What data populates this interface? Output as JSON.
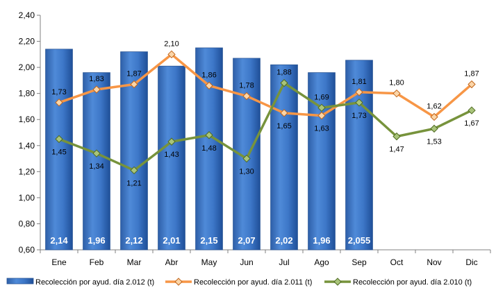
{
  "chart_data": {
    "type": "bar+line",
    "categories": [
      "Ene",
      "Feb",
      "Mar",
      "Abr",
      "May",
      "Jun",
      "Jul",
      "Ago",
      "Sep",
      "Oct",
      "Nov",
      "Dic"
    ],
    "ylim": [
      0.6,
      2.4
    ],
    "yticks": [
      "0,60",
      "0,80",
      "1,00",
      "1,20",
      "1,40",
      "1,60",
      "1,80",
      "2,00",
      "2,20",
      "2,40"
    ],
    "grid": false,
    "legend_position": "bottom",
    "series": [
      {
        "name": "Recolección por ayud. día 2.012 (t)",
        "kind": "bar",
        "color": "#3f78c8",
        "values": [
          2.14,
          1.96,
          2.12,
          2.01,
          2.15,
          2.07,
          2.02,
          1.96,
          2.055,
          null,
          null,
          null
        ],
        "labels": [
          "2,14",
          "1,96",
          "2,12",
          "2,01",
          "2,15",
          "2,07",
          "2,02",
          "1,96",
          "2,055",
          "",
          "",
          ""
        ]
      },
      {
        "name": "Recolección por ayud. día 2.011 (t)",
        "kind": "line",
        "color": "#f79646",
        "values": [
          1.73,
          1.83,
          1.87,
          2.1,
          1.86,
          1.78,
          1.65,
          1.63,
          1.81,
          1.8,
          1.62,
          1.87
        ],
        "labels": [
          "1,73",
          "1,83",
          "1,87",
          "2,10",
          "1,86",
          "1,78",
          "1,65",
          "1,63",
          "1,81",
          "1,80",
          "1,62",
          "1,87"
        ]
      },
      {
        "name": "Recolección por ayud. día 2.010 (t)",
        "kind": "line",
        "color": "#77933c",
        "values": [
          1.45,
          1.34,
          1.21,
          1.43,
          1.48,
          1.3,
          1.88,
          1.69,
          1.73,
          1.47,
          1.53,
          1.67
        ],
        "labels": [
          "1,45",
          "1,34",
          "1,21",
          "1,43",
          "1,48",
          "1,30",
          "1,88",
          "1,69",
          "1,73",
          "1,47",
          "1,53",
          "1,67"
        ]
      }
    ]
  }
}
